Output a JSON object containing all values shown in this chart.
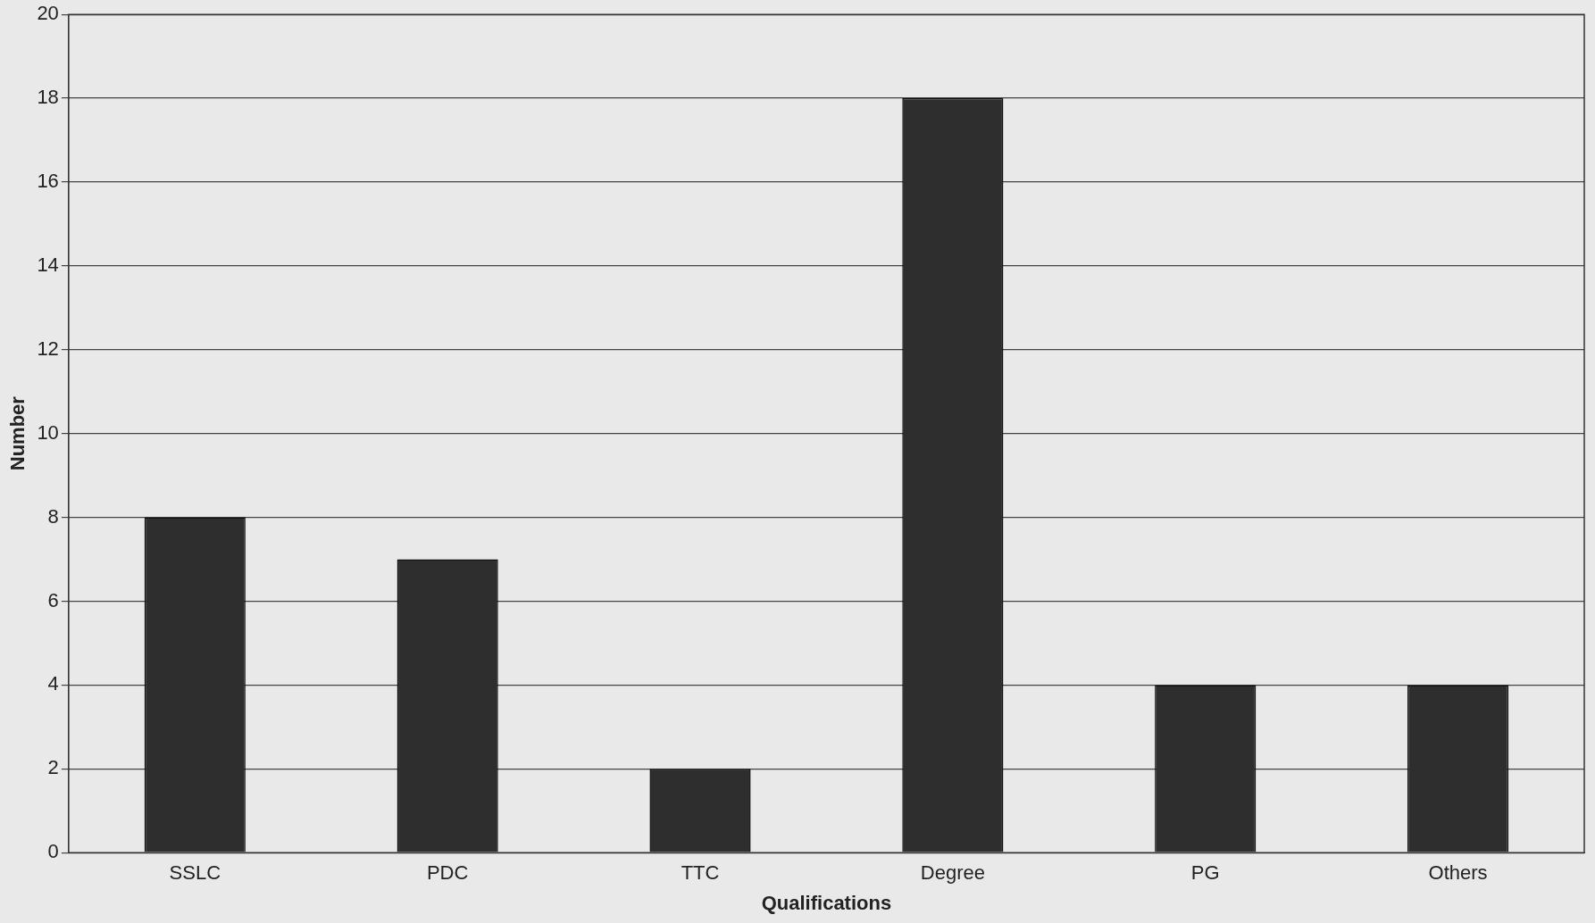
{
  "chart_data": {
    "type": "bar",
    "xlabel": "Qualifications",
    "ylabel": "Number",
    "categories": [
      "SSLC",
      "PDC",
      "TTC",
      "Degree",
      "PG",
      "Others"
    ],
    "values": [
      8,
      7,
      2,
      18,
      4,
      4
    ],
    "color": "#2e2e2e",
    "ylim": [
      0,
      20
    ],
    "yticks": [
      0,
      2,
      4,
      6,
      8,
      10,
      12,
      14,
      16,
      18,
      20
    ],
    "grid": "y"
  }
}
